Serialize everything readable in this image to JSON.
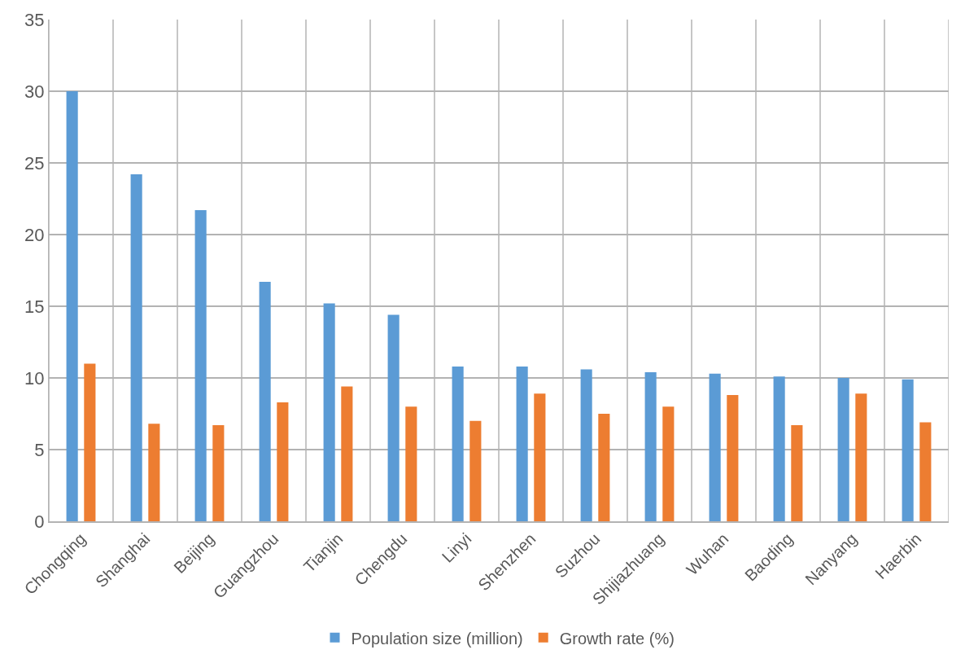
{
  "chart_data": {
    "type": "bar",
    "categories": [
      "Chongqing",
      "Shanghai",
      "Beijing",
      "Guangzhou",
      "Tianjin",
      "Chengdu",
      "Linyi",
      "Shenzhen",
      "Suzhou",
      "Shijiazhuang",
      "Wuhan",
      "Baoding",
      "Nanyang",
      "Haerbin"
    ],
    "series": [
      {
        "name": "Population size (million)",
        "color": "#5b9bd5",
        "values": [
          30.0,
          24.2,
          21.7,
          16.7,
          15.2,
          14.4,
          10.8,
          10.8,
          10.6,
          10.4,
          10.3,
          10.1,
          10.0,
          9.9
        ]
      },
      {
        "name": "Growth rate (%)",
        "color": "#ed7d31",
        "values": [
          11.0,
          6.8,
          6.7,
          8.3,
          9.4,
          8.0,
          7.0,
          8.9,
          7.5,
          8.0,
          8.8,
          6.7,
          8.9,
          6.9
        ]
      }
    ],
    "ylim": [
      0,
      35
    ],
    "yticks": [
      0,
      5,
      10,
      15,
      20,
      25,
      30,
      35
    ],
    "grid": true,
    "legend": "bottom"
  }
}
